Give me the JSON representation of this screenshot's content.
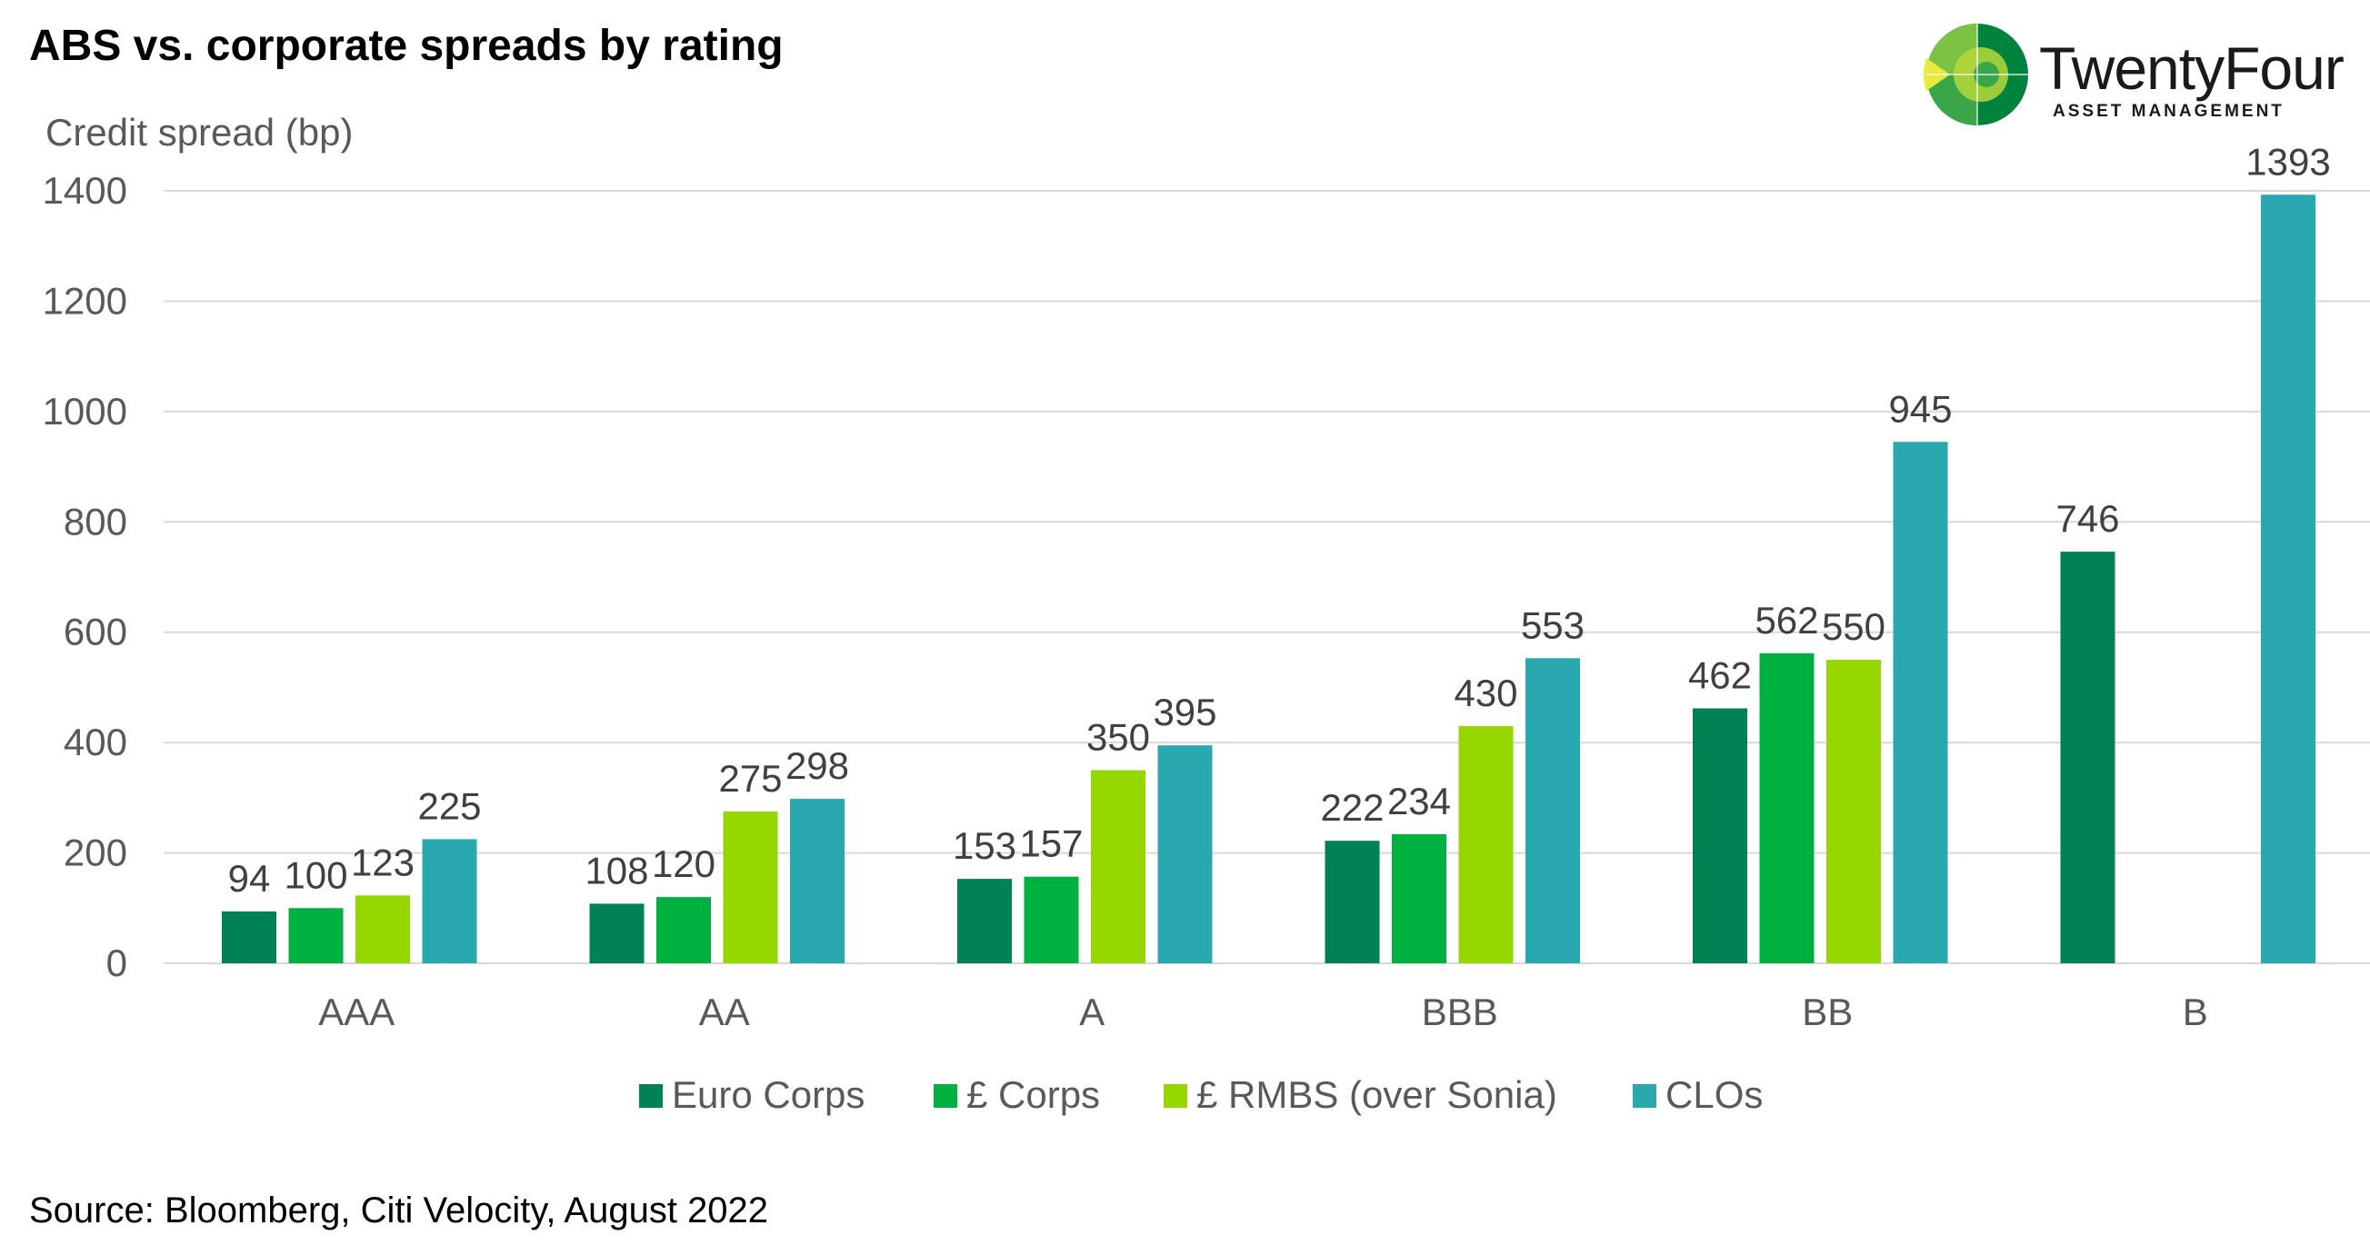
{
  "title": "ABS vs. corporate spreads by rating",
  "source": "Source: Bloomberg, Citi Velocity, August 2022",
  "logo": {
    "brand": "TwentyFour",
    "tagline": "ASSET MANAGEMENT",
    "colors": [
      "#e9ea3b",
      "#b6d83a",
      "#7cc242",
      "#3aa64a",
      "#00843d"
    ]
  },
  "chart_data": {
    "type": "bar",
    "title": "ABS vs. corporate spreads by rating",
    "ylabel": "Credit spread (bp)",
    "xlabel": "",
    "ylim": [
      0,
      1400
    ],
    "yticks": [
      0,
      200,
      400,
      600,
      800,
      1000,
      1200,
      1400
    ],
    "grid": true,
    "legend_position": "bottom",
    "categories": [
      "AAA",
      "AA",
      "A",
      "BBB",
      "BB",
      "B"
    ],
    "series": [
      {
        "name": "Euro Corps",
        "color": "#008254",
        "values": [
          94,
          108,
          153,
          222,
          462,
          746
        ]
      },
      {
        "name": "£ Corps",
        "color": "#00b140",
        "values": [
          100,
          120,
          157,
          234,
          562,
          null
        ]
      },
      {
        "name": "£ RMBS (over Sonia)",
        "color": "#97d700",
        "values": [
          123,
          275,
          350,
          430,
          550,
          null
        ]
      },
      {
        "name": "CLOs",
        "color": "#2aa8b0",
        "values": [
          225,
          298,
          395,
          553,
          945,
          1393
        ]
      }
    ]
  }
}
